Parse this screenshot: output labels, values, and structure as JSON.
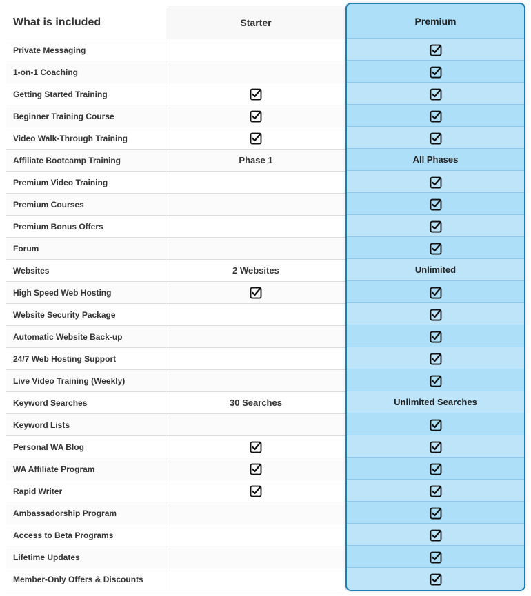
{
  "header": {
    "title": "What is included",
    "starter": "Starter",
    "premium": "Premium"
  },
  "colors": {
    "border": "#dddddd",
    "premium_border": "#1a7fb3",
    "premium_bg_light": "#bde4f9",
    "premium_bg_dark": "#aedff8",
    "text": "#333333",
    "check": "#111111"
  },
  "rows": [
    {
      "feature": "Private Messaging",
      "starter": "",
      "premium": "check"
    },
    {
      "feature": "1-on-1 Coaching",
      "starter": "",
      "premium": "check"
    },
    {
      "feature": "Getting Started Training",
      "starter": "check",
      "premium": "check"
    },
    {
      "feature": "Beginner Training Course",
      "starter": "check",
      "premium": "check"
    },
    {
      "feature": "Video Walk-Through Training",
      "starter": "check",
      "premium": "check"
    },
    {
      "feature": "Affiliate Bootcamp Training",
      "starter": "Phase 1",
      "premium": "All Phases"
    },
    {
      "feature": "Premium Video Training",
      "starter": "",
      "premium": "check"
    },
    {
      "feature": "Premium Courses",
      "starter": "",
      "premium": "check"
    },
    {
      "feature": "Premium Bonus Offers",
      "starter": "",
      "premium": "check"
    },
    {
      "feature": "Forum",
      "starter": "",
      "premium": "check"
    },
    {
      "feature": "Websites",
      "starter": "2 Websites",
      "premium": "Unlimited"
    },
    {
      "feature": "High Speed Web Hosting",
      "starter": "check",
      "premium": "check"
    },
    {
      "feature": "Website Security Package",
      "starter": "",
      "premium": "check"
    },
    {
      "feature": "Automatic Website Back-up",
      "starter": "",
      "premium": "check"
    },
    {
      "feature": "24/7 Web Hosting Support",
      "starter": "",
      "premium": "check"
    },
    {
      "feature": "Live Video Training (Weekly)",
      "starter": "",
      "premium": "check"
    },
    {
      "feature": "Keyword Searches",
      "starter": "30 Searches",
      "premium": "Unlimited Searches"
    },
    {
      "feature": "Keyword Lists",
      "starter": "",
      "premium": "check"
    },
    {
      "feature": "Personal WA Blog",
      "starter": "check",
      "premium": "check"
    },
    {
      "feature": "WA Affiliate Program",
      "starter": "check",
      "premium": "check"
    },
    {
      "feature": "Rapid Writer",
      "starter": "check",
      "premium": "check"
    },
    {
      "feature": "Ambassadorship Program",
      "starter": "",
      "premium": "check"
    },
    {
      "feature": "Access to Beta Programs",
      "starter": "",
      "premium": "check"
    },
    {
      "feature": "Lifetime Updates",
      "starter": "",
      "premium": "check"
    },
    {
      "feature": "Member-Only Offers & Discounts",
      "starter": "",
      "premium": "check"
    }
  ]
}
